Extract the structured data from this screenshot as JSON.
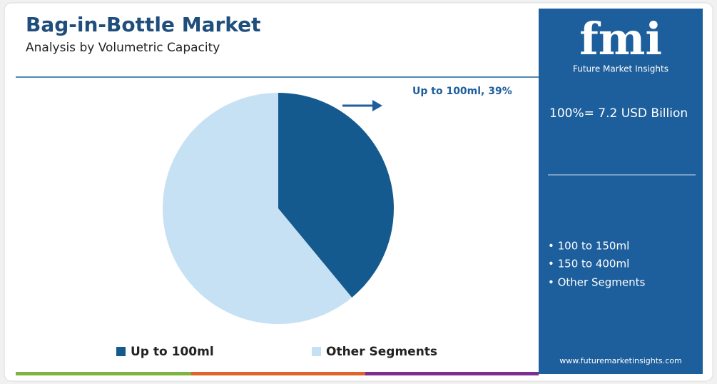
{
  "chart_data": {
    "type": "pie",
    "title": "Bag-in-Bottle Market",
    "subtitle": "Analysis by Volumetric Capacity",
    "categories": [
      "Up to 100ml",
      "Other Segments"
    ],
    "values": [
      39,
      61
    ],
    "colors": [
      "#155a8f",
      "#c6e1f3"
    ],
    "annotation": "Up to 100ml, 39%"
  },
  "panel": {
    "logo": "fmi",
    "brand": "Future Market Insights",
    "total": "100%= 7.2 USD Billion",
    "segments": [
      "• 100 to 150ml",
      "• 150 to 400ml",
      "• Other Segments"
    ],
    "url": "www.futuremarketinsights.com"
  }
}
